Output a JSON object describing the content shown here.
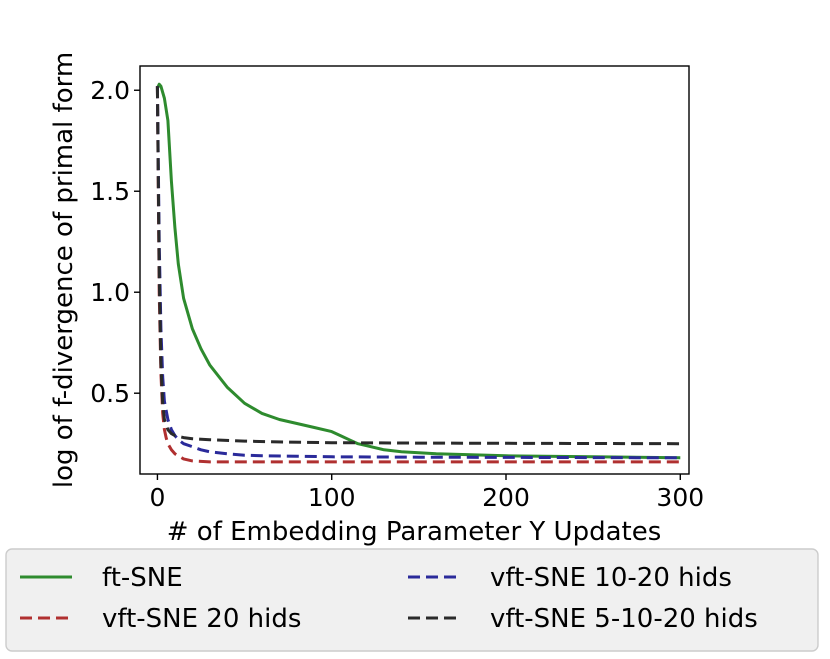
{
  "chart_data": {
    "type": "line",
    "title": "",
    "xlabel": "# of Embedding Parameter Y Updates",
    "ylabel": "log of f-divergence of primal form",
    "xlim": [
      -10,
      305
    ],
    "ylim": [
      0.1,
      2.12
    ],
    "xticks": [
      0,
      100,
      200,
      300
    ],
    "xtick_labels": [
      "0",
      "100",
      "200",
      "300"
    ],
    "yticks": [
      0.5,
      1.0,
      1.5,
      2.0
    ],
    "ytick_labels": [
      "0.5",
      "1.0",
      "1.5",
      "2.0"
    ],
    "grid": false,
    "legend_position": "below",
    "series": [
      {
        "name": "ft-SNE",
        "color": "#2e8b2e",
        "dash": "solid",
        "x": [
          0,
          1,
          2,
          4,
          6,
          8,
          10,
          12,
          15,
          20,
          25,
          30,
          40,
          50,
          60,
          70,
          80,
          90,
          100,
          105,
          110,
          115,
          120,
          130,
          140,
          150,
          160,
          180,
          200,
          250,
          300
        ],
        "y": [
          2.01,
          2.03,
          2.02,
          1.96,
          1.85,
          1.55,
          1.32,
          1.14,
          0.97,
          0.82,
          0.72,
          0.64,
          0.53,
          0.45,
          0.4,
          0.37,
          0.35,
          0.33,
          0.31,
          0.29,
          0.27,
          0.25,
          0.24,
          0.22,
          0.21,
          0.205,
          0.2,
          0.195,
          0.19,
          0.185,
          0.18
        ]
      },
      {
        "name": "vft-SNE 20 hids",
        "color": "#b03030",
        "dash": "dashed",
        "x": [
          0,
          1,
          2,
          3,
          4,
          5,
          6,
          8,
          10,
          12,
          15,
          20,
          30,
          50,
          100,
          150,
          200,
          250,
          300
        ],
        "y": [
          2.02,
          1.0,
          0.6,
          0.4,
          0.32,
          0.28,
          0.25,
          0.22,
          0.2,
          0.19,
          0.175,
          0.165,
          0.16,
          0.16,
          0.16,
          0.16,
          0.16,
          0.16,
          0.16
        ]
      },
      {
        "name": "vft-SNE 10-20 hids",
        "color": "#2a2a9a",
        "dash": "dashed",
        "x": [
          0,
          1,
          2,
          3,
          4,
          6,
          8,
          10,
          12,
          15,
          20,
          25,
          30,
          40,
          50,
          60,
          80,
          100,
          150,
          200,
          250,
          300
        ],
        "y": [
          2.02,
          1.25,
          0.82,
          0.58,
          0.46,
          0.37,
          0.32,
          0.29,
          0.27,
          0.25,
          0.235,
          0.22,
          0.21,
          0.2,
          0.193,
          0.19,
          0.188,
          0.185,
          0.183,
          0.182,
          0.181,
          0.18
        ]
      },
      {
        "name": "vft-SNE 5-10-20 hids",
        "color": "#2a2a2a",
        "dash": "dashed",
        "x": [
          0,
          1,
          2,
          3,
          4,
          6,
          8,
          10,
          15,
          20,
          30,
          50,
          75,
          100,
          150,
          200,
          250,
          300
        ],
        "y": [
          2.02,
          1.1,
          0.65,
          0.45,
          0.37,
          0.32,
          0.3,
          0.29,
          0.28,
          0.275,
          0.27,
          0.263,
          0.258,
          0.255,
          0.253,
          0.252,
          0.251,
          0.25
        ]
      }
    ]
  }
}
